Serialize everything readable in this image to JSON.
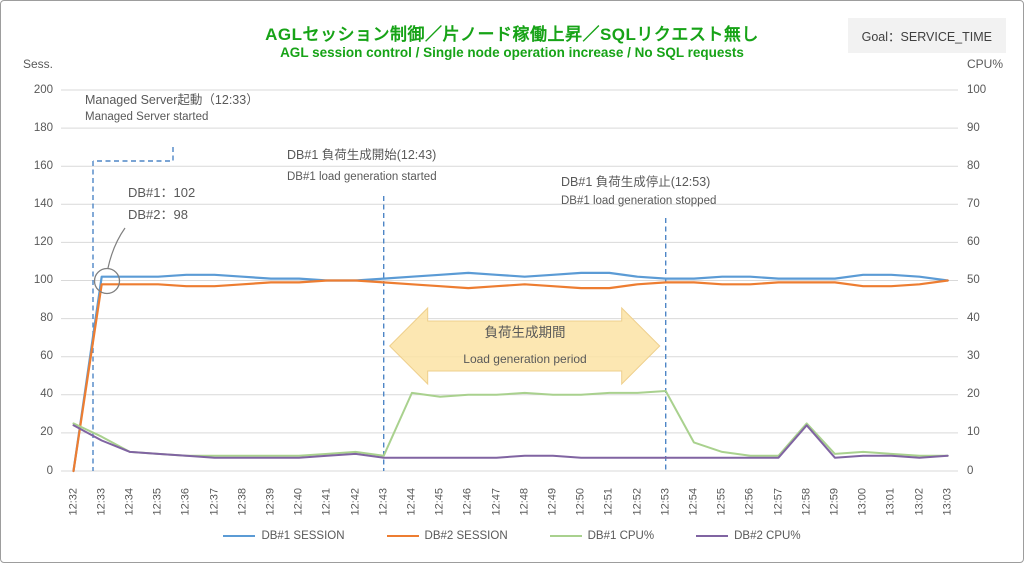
{
  "header": {
    "title_jp": "AGLセッション制御／片ノード稼働上昇／SQLリクエスト無し",
    "title_en": "AGL session control / Single node operation increase / No SQL requests",
    "title_color": "#17A317",
    "goal_label": "Goal：SERVICE_TIME"
  },
  "axes": {
    "left_unit": "Sess.",
    "right_unit": "CPU%"
  },
  "annotations": {
    "managed_server": {
      "jp": "Managed Server起動（12:33）",
      "en": "Managed Server started"
    },
    "db_values": {
      "line1": "DB#1：102",
      "line2": "DB#2：98"
    },
    "load_start": {
      "jp": "DB#1 負荷生成開始(12:43)",
      "en": "DB#1 load generation started",
      "time": "12:43"
    },
    "load_stop": {
      "jp": "DB#1 負荷生成停止(12:53)",
      "en": "DB#1 load generation stopped",
      "time": "12:53"
    },
    "period": {
      "jp": "負荷生成期間",
      "en": "Load generation period",
      "start": "12:43",
      "end": "12:53"
    }
  },
  "legend": [
    {
      "label": "DB#1 SESSION",
      "color": "#5B9BD5"
    },
    {
      "label": "DB#2 SESSION",
      "color": "#ED7D31"
    },
    {
      "label": "DB#1 CPU%",
      "color": "#A9D18E"
    },
    {
      "label": "DB#2 CPU%",
      "color": "#8064A2"
    }
  ],
  "chart_data": {
    "type": "line",
    "title": "AGLセッション制御／片ノード稼働上昇／SQLリクエスト無し",
    "subtitle": "AGL session control / Single node operation increase / No SQL requests",
    "grid": true,
    "legend_position": "bottom",
    "x": [
      "12:32",
      "12:33",
      "12:34",
      "12:35",
      "12:36",
      "12:37",
      "12:38",
      "12:39",
      "12:40",
      "12:41",
      "12:42",
      "12:43",
      "12:44",
      "12:45",
      "12:46",
      "12:47",
      "12:48",
      "12:49",
      "12:50",
      "12:51",
      "12:52",
      "12:53",
      "12:54",
      "12:55",
      "12:56",
      "12:57",
      "12:58",
      "12:59",
      "13:00",
      "13:01",
      "13:02",
      "13:03"
    ],
    "left_axis": {
      "label": "Sess.",
      "min": 0,
      "max": 200,
      "step": 20
    },
    "right_axis": {
      "label": "CPU%",
      "min": 0,
      "max": 100,
      "step": 10
    },
    "series": [
      {
        "name": "DB#1 SESSION",
        "axis": "left",
        "color": "#5B9BD5",
        "values": [
          0,
          102,
          102,
          102,
          103,
          103,
          102,
          101,
          101,
          100,
          100,
          101,
          102,
          103,
          104,
          103,
          102,
          103,
          104,
          104,
          102,
          101,
          101,
          102,
          102,
          101,
          101,
          101,
          103,
          103,
          102,
          100
        ]
      },
      {
        "name": "DB#2 SESSION",
        "axis": "left",
        "color": "#ED7D31",
        "values": [
          0,
          98,
          98,
          98,
          97,
          97,
          98,
          99,
          99,
          100,
          100,
          99,
          98,
          97,
          96,
          97,
          98,
          97,
          96,
          96,
          98,
          99,
          99,
          98,
          98,
          99,
          99,
          99,
          97,
          97,
          98,
          100
        ]
      },
      {
        "name": "DB#1 CPU%",
        "axis": "right",
        "color": "#A9D18E",
        "values": [
          12.5,
          9,
          5,
          4.5,
          4,
          4,
          4,
          4,
          4,
          4.5,
          5,
          4,
          20.5,
          19.5,
          20,
          20,
          20.5,
          20,
          20,
          20.5,
          20.5,
          21,
          7.5,
          5,
          4,
          4,
          12.5,
          4.5,
          5,
          4.5,
          4,
          4
        ]
      },
      {
        "name": "DB#2 CPU%",
        "axis": "right",
        "color": "#8064A2",
        "values": [
          12,
          8,
          5,
          4.5,
          4,
          3.5,
          3.5,
          3.5,
          3.5,
          4,
          4.5,
          3.5,
          3.5,
          3.5,
          3.5,
          3.5,
          4,
          4,
          3.5,
          3.5,
          3.5,
          3.5,
          3.5,
          3.5,
          3.5,
          3.5,
          12,
          3.5,
          4,
          4,
          3.5,
          4
        ]
      }
    ],
    "colors": {
      "gridline": "#D9D9D9",
      "annotation_dash": "#4E86C6",
      "annotation_gray": "#7F7F7F",
      "arrow_fill": "#FBE3A4",
      "arrow_stroke": "#EECF8C"
    }
  }
}
